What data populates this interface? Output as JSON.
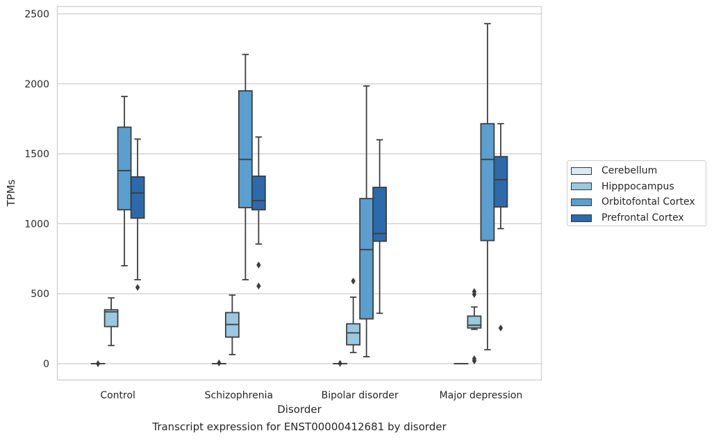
{
  "caption": "Transcript expression for ENST00000412681 by disorder",
  "chart_data": {
    "type": "box",
    "xlabel": "Disorder",
    "ylabel": "TPMs",
    "ylim": [
      -120,
      2560
    ],
    "yticks": [
      0,
      500,
      1000,
      1500,
      2000,
      2500
    ],
    "grid": "horizontal",
    "legend_position": "right",
    "categories": [
      "Control",
      "Schizophrenia",
      "Bipolar disorder",
      "Major depression"
    ],
    "series": [
      {
        "name": "Cerebellum",
        "color": "#dbe9f6",
        "boxes": [
          {
            "whisker_low": 0,
            "q1": 0,
            "median": 0,
            "q3": 0,
            "whisker_high": 0,
            "outliers": [
              0
            ]
          },
          {
            "whisker_low": 0,
            "q1": 0,
            "median": 0,
            "q3": 0,
            "whisker_high": 0,
            "outliers": [
              5
            ]
          },
          {
            "whisker_low": 0,
            "q1": 0,
            "median": 0,
            "q3": 0,
            "whisker_high": 0,
            "outliers": [
              2
            ]
          },
          {
            "whisker_low": 0,
            "q1": 0,
            "median": 0,
            "q3": 0,
            "whisker_high": 0,
            "outliers": []
          }
        ]
      },
      {
        "name": "Hipppocampus",
        "color": "#9ac8e0",
        "boxes": [
          {
            "whisker_low": 130,
            "q1": 265,
            "median": 370,
            "q3": 385,
            "whisker_high": 470,
            "outliers": []
          },
          {
            "whisker_low": 65,
            "q1": 190,
            "median": 280,
            "q3": 365,
            "whisker_high": 490,
            "outliers": []
          },
          {
            "whisker_low": 80,
            "q1": 135,
            "median": 220,
            "q3": 285,
            "whisker_high": 475,
            "outliers": [
              590
            ]
          },
          {
            "whisker_low": 245,
            "q1": 255,
            "median": 275,
            "q3": 340,
            "whisker_high": 405,
            "outliers": [
              20,
              35,
              495,
              515
            ]
          }
        ]
      },
      {
        "name": "Orbitofontal Cortex",
        "color": "#5a9fcf",
        "boxes": [
          {
            "whisker_low": 700,
            "q1": 1100,
            "median": 1380,
            "q3": 1690,
            "whisker_high": 1910,
            "outliers": []
          },
          {
            "whisker_low": 600,
            "q1": 1115,
            "median": 1460,
            "q3": 1950,
            "whisker_high": 2210,
            "outliers": []
          },
          {
            "whisker_low": 50,
            "q1": 320,
            "median": 815,
            "q3": 1180,
            "whisker_high": 1985,
            "outliers": []
          },
          {
            "whisker_low": 100,
            "q1": 880,
            "median": 1460,
            "q3": 1715,
            "whisker_high": 2430,
            "outliers": []
          }
        ]
      },
      {
        "name": "Prefrontal Cortex",
        "color": "#2c6aab",
        "boxes": [
          {
            "whisker_low": 600,
            "q1": 1040,
            "median": 1220,
            "q3": 1335,
            "whisker_high": 1605,
            "outliers": [
              545
            ]
          },
          {
            "whisker_low": 855,
            "q1": 1100,
            "median": 1165,
            "q3": 1340,
            "whisker_high": 1620,
            "outliers": [
              555,
              705
            ]
          },
          {
            "whisker_low": 360,
            "q1": 875,
            "median": 930,
            "q3": 1260,
            "whisker_high": 1600,
            "outliers": []
          },
          {
            "whisker_low": 965,
            "q1": 1120,
            "median": 1315,
            "q3": 1480,
            "whisker_high": 1715,
            "outliers": [
              255
            ]
          }
        ]
      }
    ]
  }
}
